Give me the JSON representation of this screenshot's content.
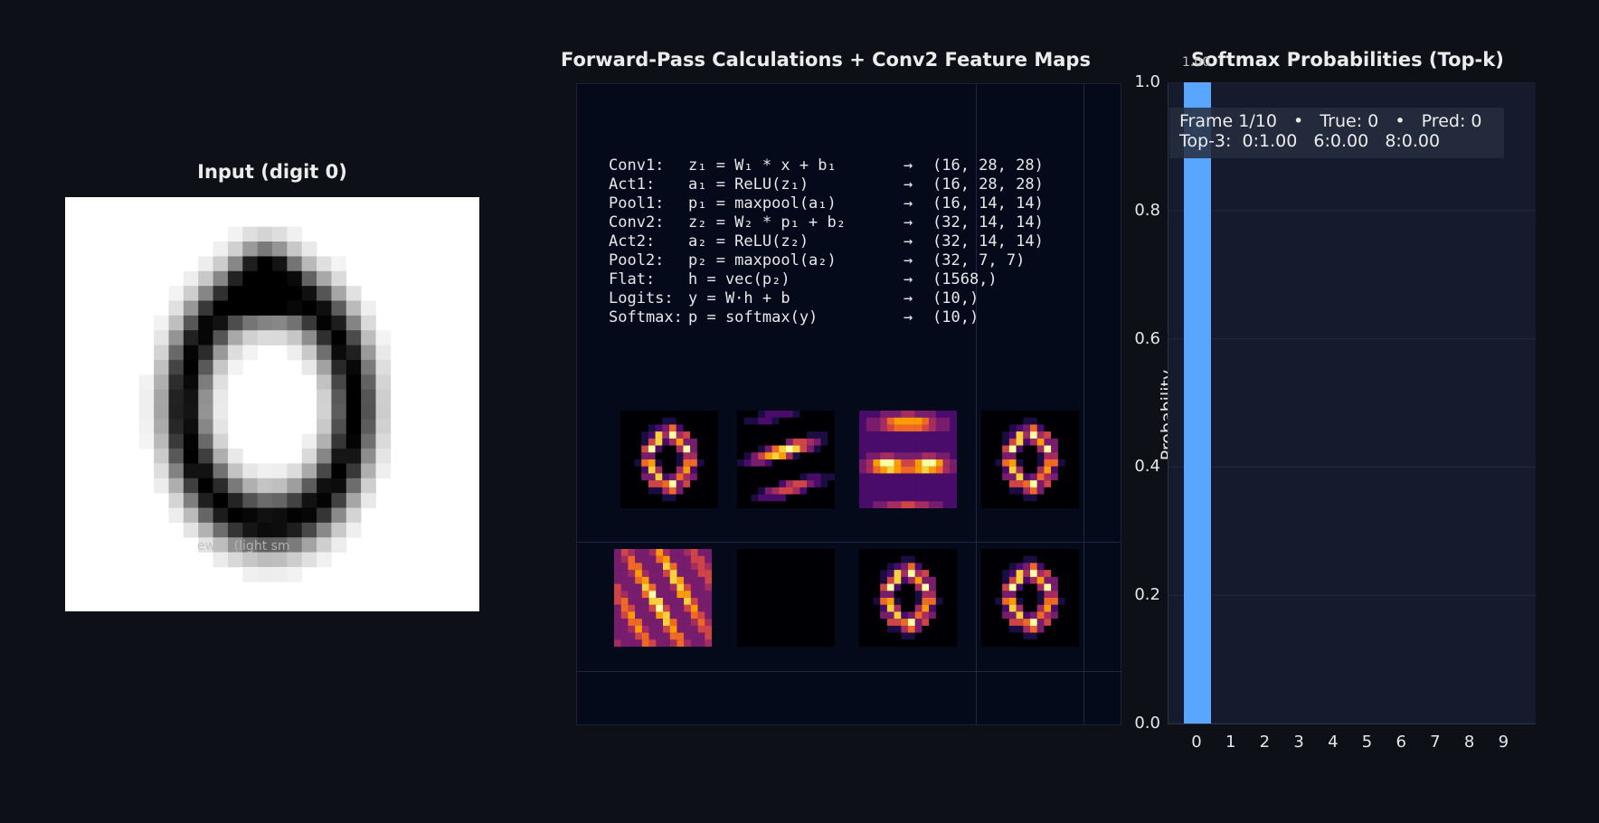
{
  "input_panel": {
    "title": "Input (digit 0)",
    "overlay_text": "ew ↑ (light sm"
  },
  "middle_panel": {
    "title": "Forward-Pass Calculations   +   Conv2 Feature Maps",
    "calculations": [
      {
        "label": "Conv1:",
        "eq": "z₁ = W₁ * x + b₁",
        "arrow": "→",
        "shape": "(16, 28, 28)"
      },
      {
        "label": "Act1:",
        "eq": "a₁ = ReLU(z₁)",
        "arrow": "→",
        "shape": "(16, 28, 28)"
      },
      {
        "label": "Pool1:",
        "eq": "p₁ = maxpool(a₁)",
        "arrow": "→",
        "shape": "(16, 14, 14)"
      },
      {
        "label": "Conv2:",
        "eq": "z₂ = W₂ * p₁ + b₂",
        "arrow": "→",
        "shape": "(32, 14, 14)"
      },
      {
        "label": "Act2:",
        "eq": "a₂ = ReLU(z₂)",
        "arrow": "→",
        "shape": "(32, 14, 14)"
      },
      {
        "label": "Pool2:",
        "eq": "p₂ = maxpool(a₂)",
        "arrow": "→",
        "shape": "(32, 7, 7)"
      },
      {
        "label": "Flat:",
        "eq": "h = vec(p₂)",
        "arrow": "→",
        "shape": "(1568,)"
      },
      {
        "label": "Logits:",
        "eq": "y = W·h + b",
        "arrow": "→",
        "shape": "(10,)"
      },
      {
        "label": "Softmax:",
        "eq": "p = softmax(y)",
        "arrow": "→",
        "shape": "(10,)"
      }
    ],
    "feature_map_count": 8
  },
  "right_panel": {
    "title": "Softmax Probabilities (Top-k)",
    "info_line_1": "Frame 1/10   •   True: 0   •   Pred: 0",
    "info_line_2": "Top-3:  0:1.00   6:0.00   8:0.00",
    "bar_value_label": "1.00"
  },
  "colors": {
    "bar": "#58a6ff",
    "background": "#0d1117",
    "plot_bg": "#151b2d"
  },
  "chart_data": {
    "type": "bar",
    "title": "Softmax Probabilities (Top-k)",
    "xlabel": "",
    "ylabel": "Probability",
    "categories": [
      "0",
      "1",
      "2",
      "3",
      "4",
      "5",
      "6",
      "7",
      "8",
      "9"
    ],
    "values": [
      1.0,
      0,
      0,
      0,
      0,
      0,
      0,
      0,
      0,
      0
    ],
    "ylim": [
      0,
      1.0
    ],
    "yticks": [
      "0.0",
      "0.2",
      "0.4",
      "0.6",
      "0.8",
      "1.0"
    ],
    "grid": true
  }
}
